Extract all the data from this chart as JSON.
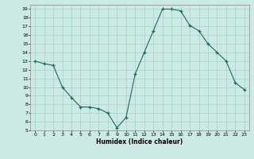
{
  "x": [
    0,
    1,
    2,
    3,
    4,
    5,
    6,
    7,
    8,
    9,
    10,
    11,
    12,
    13,
    14,
    15,
    16,
    17,
    18,
    19,
    20,
    21,
    22,
    23
  ],
  "y": [
    13.0,
    12.7,
    12.5,
    10.0,
    8.8,
    7.7,
    7.7,
    7.5,
    7.0,
    5.3,
    6.5,
    11.5,
    14.0,
    16.5,
    19.0,
    19.0,
    18.8,
    17.1,
    16.5,
    15.0,
    14.0,
    13.0,
    10.5,
    9.7
  ],
  "xlabel": "Humidex (Indice chaleur)",
  "bg_color": "#cceae4",
  "grid_color": "#aacfc8",
  "line_color": "#1a6b5a",
  "ylim": [
    5,
    19.5
  ],
  "xlim": [
    -0.5,
    23.5
  ],
  "yticks": [
    5,
    6,
    7,
    8,
    9,
    10,
    11,
    12,
    13,
    14,
    15,
    16,
    17,
    18,
    19
  ],
  "xticks": [
    0,
    1,
    2,
    3,
    4,
    5,
    6,
    7,
    8,
    9,
    10,
    11,
    12,
    13,
    14,
    15,
    16,
    17,
    18,
    19,
    20,
    21,
    22,
    23
  ]
}
